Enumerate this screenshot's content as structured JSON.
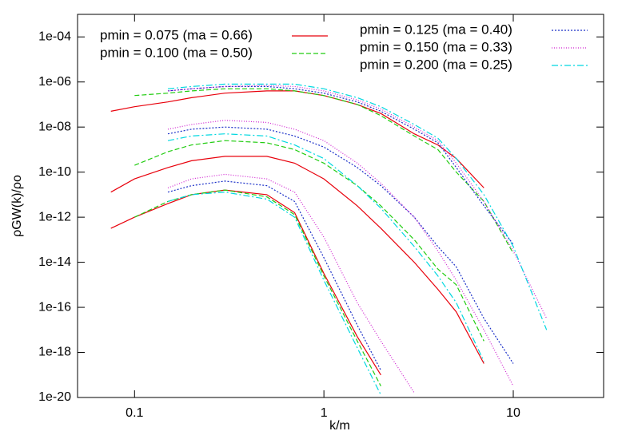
{
  "chart_data": {
    "type": "line",
    "log_x": true,
    "log_y": true,
    "xlabel": "k/m",
    "ylabel": "ρGW(k)/ρo",
    "xlim": [
      0.05,
      30
    ],
    "ylim": [
      1e-20,
      0.001
    ],
    "xticks": [
      0.1,
      1,
      10
    ],
    "yticks": [
      {
        "value": 1e-20,
        "label": "1e-20"
      },
      {
        "value": 1e-18,
        "label": "1e-18"
      },
      {
        "value": 1e-16,
        "label": "1e-16"
      },
      {
        "value": 1e-14,
        "label": "1e-14"
      },
      {
        "value": 1e-12,
        "label": "1e-12"
      },
      {
        "value": 1e-10,
        "label": "1e-10"
      },
      {
        "value": 1e-08,
        "label": "1e-08"
      },
      {
        "value": 1e-06,
        "label": "1e-06"
      },
      {
        "value": 0.0001,
        "label": "1e-04"
      }
    ],
    "x": [
      0.075,
      0.1,
      0.15,
      0.2,
      0.3,
      0.5,
      0.7,
      1,
      1.5,
      2,
      3,
      4,
      5,
      7,
      10,
      15
    ],
    "series": [
      {
        "name": "pmin = 0.075  (ma = 0.66)",
        "color": "#e8000b",
        "dash": "none",
        "lines": [
          [
            5e-08,
            8e-08,
            1.3e-07,
            2e-07,
            3.2e-07,
            4e-07,
            4e-07,
            2.5e-07,
            1e-07,
            4e-08,
            5e-09,
            1.6e-09,
            4e-10,
            2e-11,
            null,
            null
          ],
          [
            1.3e-11,
            5e-11,
            1.6e-10,
            3.2e-10,
            5e-10,
            5e-10,
            2.5e-10,
            5e-11,
            3.2e-12,
            3.2e-13,
            1e-14,
            6.3e-16,
            6.3e-17,
            3.2e-19,
            null,
            null
          ],
          [
            3.2e-13,
            1e-12,
            4e-12,
            1e-11,
            1.6e-11,
            1e-11,
            1.6e-12,
            3.2e-15,
            5e-18,
            1e-19,
            null,
            null,
            null,
            null,
            null,
            null
          ]
        ]
      },
      {
        "name": "pmin = 0.100  (ma = 0.50)",
        "color": "#22cc11",
        "dash": "6,3",
        "lines": [
          [
            null,
            2.5e-07,
            3.2e-07,
            4e-07,
            5e-07,
            5e-07,
            4e-07,
            2.5e-07,
            1e-07,
            3.2e-08,
            4e-09,
            1e-09,
            1e-10,
            5e-12,
            2.5e-14,
            null
          ],
          [
            null,
            2e-10,
            8e-10,
            1.6e-09,
            2.5e-09,
            2e-09,
            1e-09,
            2.5e-10,
            2.5e-11,
            3.2e-12,
            1e-13,
            5e-15,
            1e-15,
            3.2e-18,
            null,
            null
          ],
          [
            null,
            1e-12,
            5e-12,
            1e-11,
            1.6e-11,
            8e-12,
            1.3e-12,
            2.5e-15,
            3.2e-18,
            3.2e-20,
            null,
            null,
            null,
            null,
            null,
            null
          ]
        ]
      },
      {
        "name": "pmin = 0.125  (ma = 0.40)",
        "color": "#1a2fc8",
        "dash": "2,2",
        "lines": [
          [
            null,
            null,
            4e-07,
            5e-07,
            6.3e-07,
            6.3e-07,
            5e-07,
            3.2e-07,
            1.3e-07,
            5e-08,
            8e-09,
            2e-09,
            1.6e-10,
            3.2e-12,
            6.3e-14,
            null
          ],
          [
            null,
            null,
            5e-09,
            8e-09,
            1e-08,
            8e-09,
            4e-09,
            1.3e-09,
            1.6e-10,
            2.5e-11,
            1e-12,
            5e-14,
            6.3e-15,
            3.2e-17,
            3.2e-19,
            null
          ],
          [
            null,
            null,
            1.3e-11,
            2.5e-11,
            4e-11,
            2.5e-11,
            5e-12,
            1.6e-14,
            1.6e-17,
            1.6e-19,
            null,
            null,
            null,
            null,
            null,
            null
          ]
        ]
      },
      {
        "name": "pmin = 0.150  (ma = 0.33)",
        "color": "#d020d0",
        "dash": "1,2",
        "lines": [
          [
            null,
            null,
            4e-07,
            5e-07,
            6.3e-07,
            7e-07,
            6.3e-07,
            4e-07,
            1.6e-07,
            6.3e-08,
            1e-08,
            2.5e-09,
            2.5e-10,
            5e-12,
            3.2e-14,
            3.2e-17
          ],
          [
            null,
            null,
            8e-09,
            1.3e-08,
            2e-08,
            1.6e-08,
            8e-09,
            2.5e-09,
            2.5e-10,
            3.2e-11,
            1e-12,
            3.2e-14,
            1.6e-15,
            1e-17,
            3.2e-20,
            null
          ],
          [
            null,
            null,
            2e-11,
            5e-11,
            8e-11,
            5e-11,
            1.3e-11,
            1.3e-13,
            1.6e-16,
            3.2e-18,
            1.6e-20,
            null,
            null,
            null,
            null,
            null
          ]
        ]
      },
      {
        "name": "pmin = 0.200  (ma = 0.25)",
        "color": "#00d8e0",
        "dash": "8,3,2,3",
        "lines": [
          [
            null,
            null,
            5e-07,
            6.3e-07,
            8e-07,
            8e-07,
            8e-07,
            5e-07,
            2e-07,
            8e-08,
            1.3e-08,
            3.2e-09,
            4e-10,
            1e-11,
            5e-14,
            1e-17
          ],
          [
            null,
            null,
            2.5e-09,
            4e-09,
            5e-09,
            4e-09,
            1.6e-09,
            4e-10,
            2.5e-11,
            2.5e-12,
            5e-14,
            2.5e-15,
            1.6e-16,
            4e-19,
            null,
            null
          ],
          [
            null,
            null,
            5e-12,
            1e-11,
            1.3e-11,
            6.3e-12,
            1e-12,
            1.6e-15,
            1.6e-18,
            1.3e-20,
            null,
            null,
            null,
            null,
            null,
            null
          ]
        ]
      }
    ]
  }
}
